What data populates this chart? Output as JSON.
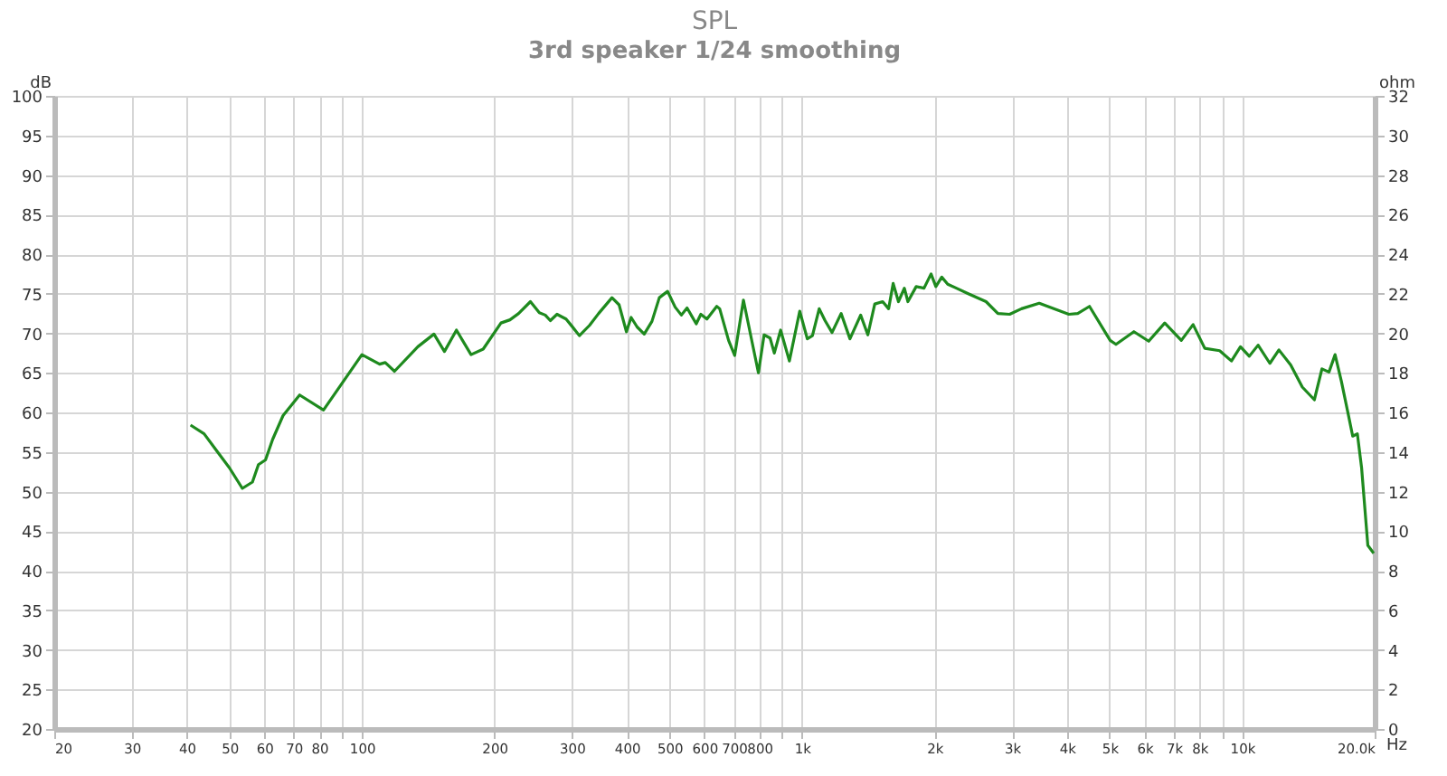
{
  "chart_data": {
    "type": "line",
    "title": "SPL",
    "subtitle": "3rd  speaker 1/24 smoothing",
    "xlabel": "Hz",
    "ylabel": "dB",
    "y2label": "ohm",
    "log": "x",
    "grid": true,
    "marker": "none",
    "line_style": "solid",
    "xlim": [
      20,
      20000
    ],
    "xticks": [
      20,
      30,
      40,
      50,
      60,
      70,
      80,
      {
        "value": 90,
        "label": null
      },
      100,
      200,
      300,
      400,
      500,
      600,
      700,
      800,
      {
        "value": 900,
        "label": null
      },
      {
        "value": 1000,
        "label": "1k"
      },
      {
        "value": 2000,
        "label": "2k"
      },
      {
        "value": 3000,
        "label": "3k"
      },
      {
        "value": 4000,
        "label": "4k"
      },
      {
        "value": 5000,
        "label": "5k"
      },
      {
        "value": 6000,
        "label": "6k"
      },
      {
        "value": 7000,
        "label": "7k"
      },
      {
        "value": 8000,
        "label": "8k"
      },
      {
        "value": 9000,
        "label": null
      },
      {
        "value": 10000,
        "label": "10k"
      },
      {
        "value": 20000,
        "label": "20.0k"
      }
    ],
    "ylim": [
      20,
      100
    ],
    "yticks": [
      20,
      25,
      30,
      35,
      40,
      45,
      50,
      55,
      60,
      65,
      70,
      75,
      80,
      85,
      90,
      95,
      100
    ],
    "y2lim": [
      0,
      32
    ],
    "y2ticks": [
      0,
      2,
      4,
      6,
      8,
      10,
      12,
      14,
      16,
      18,
      20,
      22,
      24,
      26,
      28,
      30,
      32
    ],
    "series": [
      {
        "color": "#1e8a1e",
        "x": [
          40.8,
          43.8,
          47,
          50,
          53.5,
          56.4,
          58.2,
          60.4,
          62.7,
          66.2,
          72.2,
          81.8,
          100,
          109.7,
          113,
          118.6,
          134,
          145.8,
          154,
          164,
          177,
          188.6,
          207,
          217,
          227,
          241.5,
          253,
          261,
          268,
          277.5,
          291,
          300,
          312,
          329,
          345,
          370,
          384,
          399,
          409,
          422,
          438,
          456,
          474,
          495,
          515,
          532,
          548,
          575,
          589,
          608,
          640,
          650,
          681,
          703,
          736,
          796,
          820,
          846,
          865,
          894,
          936,
          988,
          1028,
          1056,
          1094,
          1128,
          1170,
          1227,
          1285,
          1359,
          1411,
          1463,
          1525,
          1573,
          1611,
          1656,
          1708,
          1740,
          1817,
          1893,
          1964,
          2014,
          2077,
          2143,
          2243,
          2386,
          2619,
          2786,
          2963,
          3152,
          3459,
          4039,
          4231,
          4499,
          5013,
          5168,
          5676,
          6133,
          6670,
          7274,
          7736,
          8224,
          8890,
          9455,
          9911,
          10380,
          10870,
          11560,
          12120,
          12890,
          13700,
          14590,
          15180,
          15750,
          16260,
          16810,
          17400,
          17830,
          18270,
          18680,
          19300,
          19900
        ],
        "values": [
          58.4,
          57.3,
          55,
          53,
          50.4,
          51.2,
          53.4,
          54,
          56.6,
          59.6,
          62.2,
          60.3,
          67.3,
          66.1,
          66.3,
          65.2,
          68.3,
          69.9,
          67.7,
          70.4,
          67.3,
          68,
          71.3,
          71.7,
          72.5,
          74,
          72.6,
          72.3,
          71.6,
          72.4,
          71.8,
          70.9,
          69.7,
          71,
          72.5,
          74.5,
          73.6,
          70.2,
          72,
          70.8,
          69.9,
          71.5,
          74.5,
          75.3,
          73.3,
          72.3,
          73.2,
          71.2,
          72.4,
          71.8,
          73.4,
          73.1,
          69.1,
          67.2,
          74.2,
          65,
          69.8,
          69.4,
          67.5,
          70.4,
          66.5,
          72.8,
          69.3,
          69.7,
          73.1,
          71.6,
          70.1,
          72.5,
          69.3,
          72.3,
          69.8,
          73.7,
          74,
          73.1,
          76.3,
          74,
          75.7,
          74,
          75.9,
          75.7,
          77.5,
          75.9,
          77.1,
          76.2,
          75.7,
          75,
          74,
          72.5,
          72.4,
          73.1,
          73.8,
          72.4,
          72.5,
          73.4,
          69.1,
          68.6,
          70.2,
          69,
          71.3,
          69.1,
          71.1,
          68.1,
          67.8,
          66.5,
          68.3,
          67.1,
          68.5,
          66.2,
          67.9,
          66,
          63.2,
          61.6,
          65.5,
          65.1,
          67.3,
          63.9,
          59.9,
          57,
          57.3,
          53,
          43.2,
          42.2
        ]
      }
    ]
  }
}
